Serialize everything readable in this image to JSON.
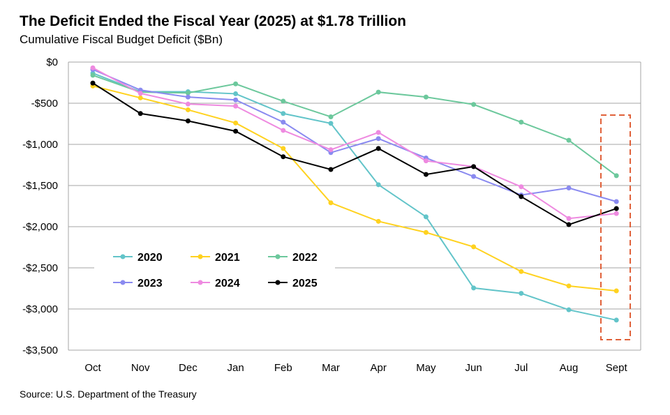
{
  "title": "The Deficit Ended the Fiscal Year (2025) at $1.78 Trillion",
  "subtitle": "Cumulative Fiscal Budget Deficit ($Bn)",
  "source": "Source: U.S. Department of the Treasury",
  "chart_data": {
    "type": "line",
    "title": "The Deficit Ended the Fiscal Year (2025) at $1.78 Trillion",
    "subtitle": "Cumulative Fiscal Budget Deficit ($Bn)",
    "categories": [
      "Oct",
      "Nov",
      "Dec",
      "Jan",
      "Feb",
      "Mar",
      "Apr",
      "May",
      "Jun",
      "Jul",
      "Aug",
      "Sept"
    ],
    "ylim": [
      -3500,
      0
    ],
    "yticks": [
      0,
      -500,
      -1000,
      -1500,
      -2000,
      -2500,
      -3000,
      -3500
    ],
    "ytick_labels": [
      "$0",
      "-$500",
      "-$1,000",
      "-$1,500",
      "-$2,000",
      "-$2,500",
      "-$3,000",
      "-$3,500"
    ],
    "grid": true,
    "legend": "inside-lower-left",
    "highlight": {
      "category": "Sept",
      "style": "dashed box",
      "color": "#e0613a"
    },
    "series": [
      {
        "name": "2020",
        "color": "#62c4c9",
        "values": [
          -135,
          -360,
          -360,
          -385,
          -625,
          -745,
          -1490,
          -1880,
          -2745,
          -2810,
          -3010,
          -3135
        ]
      },
      {
        "name": "2021",
        "color": "#ffd21f",
        "values": [
          -290,
          -435,
          -580,
          -740,
          -1050,
          -1710,
          -1935,
          -2070,
          -2245,
          -2545,
          -2720,
          -2780
        ]
      },
      {
        "name": "2022",
        "color": "#6cc89c",
        "values": [
          -160,
          -365,
          -375,
          -265,
          -475,
          -665,
          -365,
          -425,
          -515,
          -730,
          -950,
          -1380
        ]
      },
      {
        "name": "2023",
        "color": "#8a8af0",
        "values": [
          -90,
          -340,
          -425,
          -460,
          -730,
          -1100,
          -930,
          -1165,
          -1390,
          -1615,
          -1530,
          -1695
        ]
      },
      {
        "name": "2024",
        "color": "#ee8ae0",
        "values": [
          -70,
          -380,
          -510,
          -535,
          -830,
          -1065,
          -855,
          -1200,
          -1270,
          -1515,
          -1900,
          -1840
        ]
      },
      {
        "name": "2025",
        "color": "#000000",
        "values": [
          -255,
          -625,
          -715,
          -840,
          -1150,
          -1305,
          -1050,
          -1365,
          -1270,
          -1635,
          -1975,
          -1780
        ]
      }
    ]
  }
}
